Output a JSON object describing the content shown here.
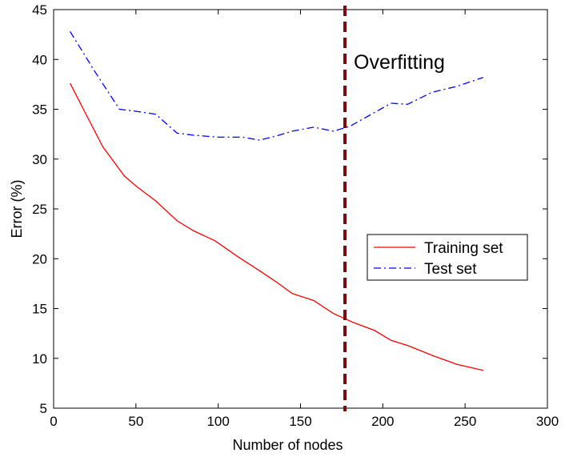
{
  "chart_data": {
    "type": "line",
    "title": "",
    "xlabel": "Number of nodes",
    "ylabel": "Error (%)",
    "xlim": [
      0,
      300
    ],
    "ylim": [
      5,
      45
    ],
    "xticks": [
      0,
      50,
      100,
      150,
      200,
      250,
      300
    ],
    "yticks": [
      5,
      10,
      15,
      20,
      25,
      30,
      35,
      40,
      45
    ],
    "grid": false,
    "legend_position": "center-right",
    "series": [
      {
        "name": "Training set",
        "color": "#ff0000",
        "style": "solid",
        "x": [
          10,
          20,
          30,
          43,
          50,
          62,
          75,
          85,
          98,
          112,
          125,
          135,
          145,
          158,
          170,
          182,
          195,
          205,
          215,
          230,
          245,
          261
        ],
        "y": [
          37.6,
          34.4,
          31.2,
          28.3,
          27.3,
          25.8,
          23.8,
          22.8,
          21.8,
          20.2,
          18.8,
          17.7,
          16.5,
          15.8,
          14.5,
          13.6,
          12.8,
          11.8,
          11.3,
          10.3,
          9.4,
          8.8
        ]
      },
      {
        "name": "Test set",
        "color": "#0000ff",
        "style": "dashdot",
        "x": [
          10,
          25,
          40,
          50,
          62,
          75,
          85,
          100,
          115,
          125,
          135,
          145,
          158,
          170,
          180,
          192,
          205,
          215,
          230,
          245,
          261
        ],
        "y": [
          42.8,
          38.8,
          35.0,
          34.8,
          34.5,
          32.6,
          32.4,
          32.2,
          32.2,
          31.9,
          32.3,
          32.8,
          33.2,
          32.8,
          33.3,
          34.4,
          35.6,
          35.5,
          36.7,
          37.3,
          38.2
        ]
      }
    ],
    "threshold": {
      "x": 177,
      "label": "Overfitting",
      "color": "#7a0c0c"
    }
  }
}
